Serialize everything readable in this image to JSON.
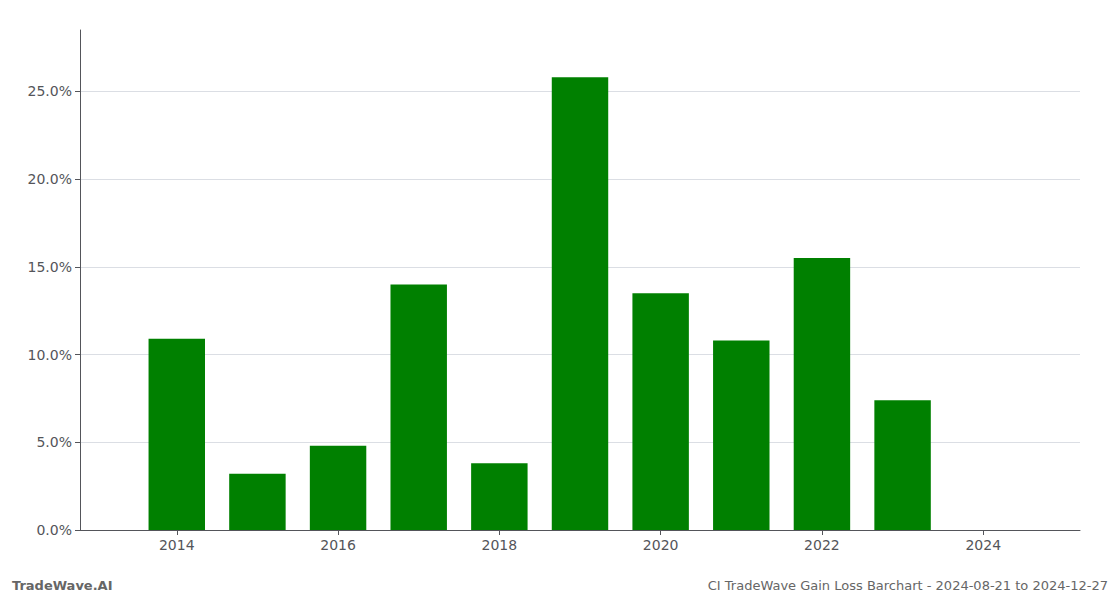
{
  "chart_data": {
    "type": "bar",
    "x": [
      2014,
      2015,
      2016,
      2017,
      2018,
      2019,
      2020,
      2021,
      2022,
      2023
    ],
    "values": [
      0.109,
      0.032,
      0.048,
      0.14,
      0.038,
      0.258,
      0.135,
      0.108,
      0.155,
      0.074
    ],
    "color": "#008000",
    "xlim": [
      2012.8,
      2025.2
    ],
    "xticks": [
      2014,
      2016,
      2018,
      2020,
      2022,
      2024
    ],
    "ylim": [
      0,
      0.285
    ],
    "yticks": [
      {
        "value": 0.0,
        "label": "0.0%"
      },
      {
        "value": 0.05,
        "label": "5.0%"
      },
      {
        "value": 0.1,
        "label": "10.0%"
      },
      {
        "value": 0.15,
        "label": "15.0%"
      },
      {
        "value": 0.2,
        "label": "20.0%"
      },
      {
        "value": 0.25,
        "label": "25.0%"
      }
    ],
    "grid": true,
    "annotations": [
      "TradeWave.AI",
      "CI TradeWave Gain Loss Barchart - 2024-08-21 to 2024-12-27"
    ]
  }
}
